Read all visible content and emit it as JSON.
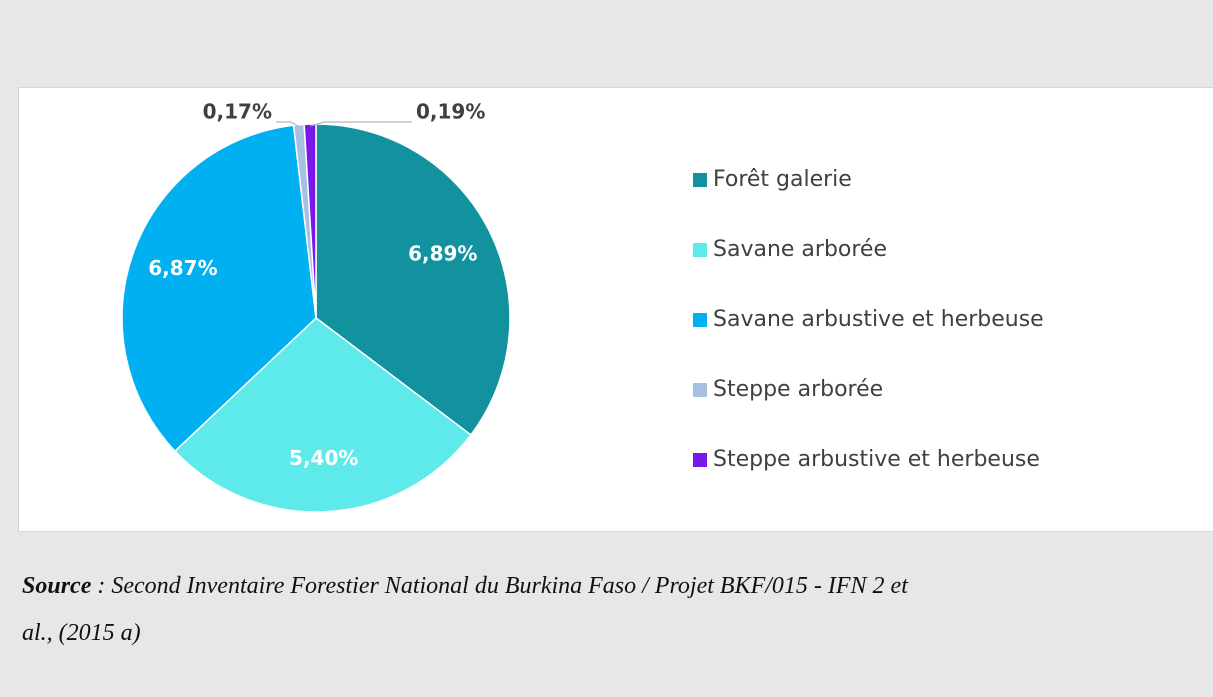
{
  "chart_data": {
    "type": "pie",
    "categories": [
      "Forêt galerie",
      "Savane arborée",
      "Savane arbustive et herbeuse",
      "Steppe arborée",
      "Steppe arbustive et herbeuse"
    ],
    "values": [
      6.89,
      5.4,
      6.87,
      0.17,
      0.19
    ],
    "value_labels": [
      "6,89%",
      "5,40%",
      "6,87%",
      "0,17%",
      "0,19%"
    ],
    "colors": [
      "#12929e",
      "#5eeaea",
      "#00b0f0",
      "#a6c0e2",
      "#7a18ec"
    ],
    "legend": "right"
  },
  "source": {
    "label": "Source",
    "line1": " : Second Inventaire Forestier National du Burkina Faso / Projet BKF/015 - IFN 2 et",
    "line2": "al., (2015 a)"
  }
}
